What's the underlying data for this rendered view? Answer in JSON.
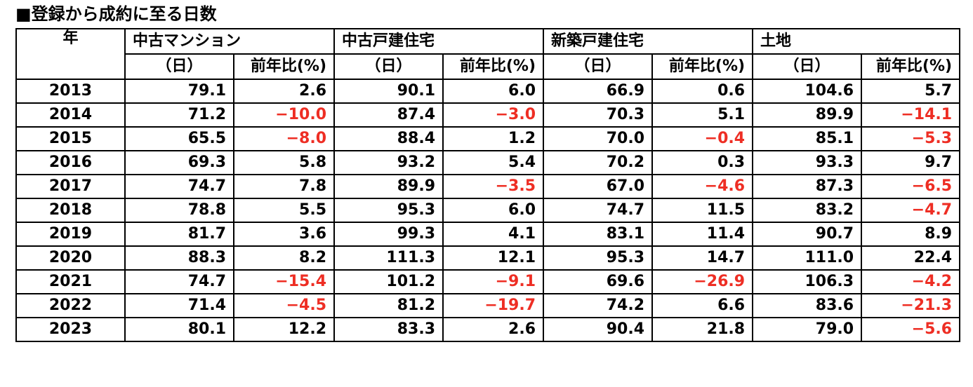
{
  "title": "■登録から成約に至る日数",
  "header": {
    "year_label": "年",
    "groups": [
      "中古マンション",
      "中古戸建住宅",
      "新築戸建住宅",
      "土地"
    ],
    "unit_label": "（日）",
    "yoy_label": "前年比(%)"
  },
  "rows": [
    {
      "year": "2013",
      "cells": [
        "79.1",
        "2.6",
        "90.1",
        "6.0",
        "66.9",
        "0.6",
        "104.6",
        "5.7"
      ]
    },
    {
      "year": "2014",
      "cells": [
        "71.2",
        "−10.0",
        "87.4",
        "−3.0",
        "70.3",
        "5.1",
        "89.9",
        "−14.1"
      ]
    },
    {
      "year": "2015",
      "cells": [
        "65.5",
        "−8.0",
        "88.4",
        "1.2",
        "70.0",
        "−0.4",
        "85.1",
        "−5.3"
      ]
    },
    {
      "year": "2016",
      "cells": [
        "69.3",
        "5.8",
        "93.2",
        "5.4",
        "70.2",
        "0.3",
        "93.3",
        "9.7"
      ]
    },
    {
      "year": "2017",
      "cells": [
        "74.7",
        "7.8",
        "89.9",
        "−3.5",
        "67.0",
        "−4.6",
        "87.3",
        "−6.5"
      ]
    },
    {
      "year": "2018",
      "cells": [
        "78.8",
        "5.5",
        "95.3",
        "6.0",
        "74.7",
        "11.5",
        "83.2",
        "−4.7"
      ]
    },
    {
      "year": "2019",
      "cells": [
        "81.7",
        "3.6",
        "99.3",
        "4.1",
        "83.1",
        "11.4",
        "90.7",
        "8.9"
      ]
    },
    {
      "year": "2020",
      "cells": [
        "88.3",
        "8.2",
        "111.3",
        "12.1",
        "95.3",
        "14.7",
        "111.0",
        "22.4"
      ]
    },
    {
      "year": "2021",
      "cells": [
        "74.7",
        "−15.4",
        "101.2",
        "−9.1",
        "69.6",
        "−26.9",
        "106.3",
        "−4.2"
      ]
    },
    {
      "year": "2022",
      "cells": [
        "71.4",
        "−4.5",
        "81.2",
        "−19.7",
        "74.2",
        "6.6",
        "83.6",
        "−21.3"
      ]
    },
    {
      "year": "2023",
      "cells": [
        "80.1",
        "12.2",
        "83.3",
        "2.6",
        "90.4",
        "21.8",
        "79.0",
        "−5.6"
      ]
    }
  ],
  "colors": {
    "negative": "#ee2e24",
    "text": "#000000",
    "border": "#000000"
  }
}
